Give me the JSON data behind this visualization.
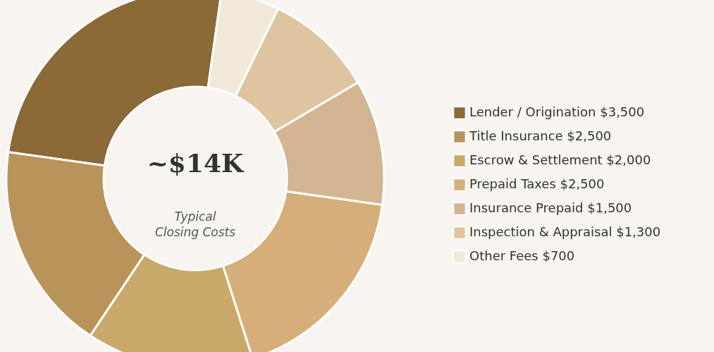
{
  "chart_data": {
    "type": "donut",
    "categories": [
      "Lender / Origination",
      "Title Insurance",
      "Escrow & Settlement",
      "Prepaid Taxes",
      "Insurance Prepaid",
      "Inspection & Appraisal",
      "Other Fees"
    ],
    "values": [
      3500,
      2500,
      2000,
      2500,
      1500,
      1300,
      700
    ],
    "value_labels": [
      "$3,500",
      "$2,500",
      "$2,000",
      "$2,500",
      "$1,500",
      "$1,300",
      "$700"
    ],
    "colors": [
      "#8b6a37",
      "#b8945a",
      "#c8a96a",
      "#d5ae7a",
      "#d4b591",
      "#dec5a0",
      "#f1e8d8"
    ],
    "annotations": [
      "~$14K",
      "Typical\nClosing Costs"
    ],
    "legend": "right"
  }
}
